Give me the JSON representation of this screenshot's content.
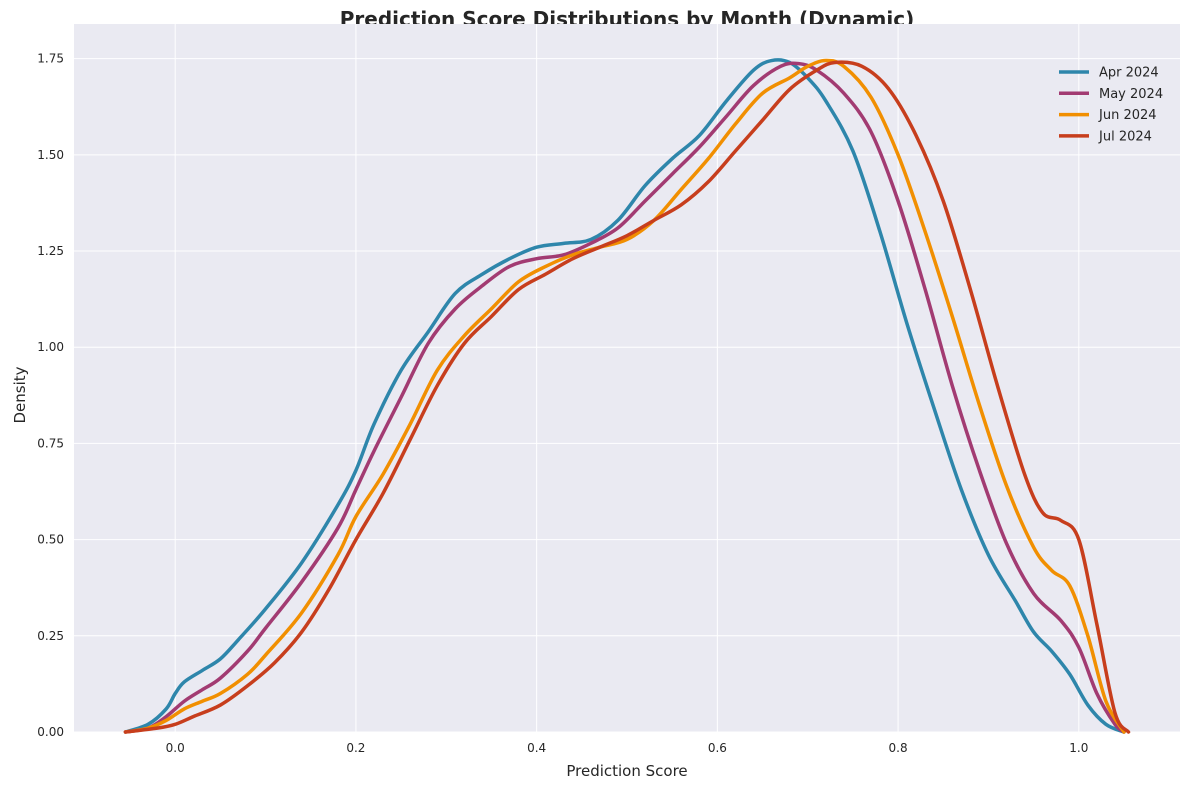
{
  "chart_data": {
    "type": "line",
    "title": "Prediction Score Distributions by Month (Dynamic)",
    "xlabel": "Prediction Score",
    "ylabel": "Density",
    "xlim": [
      -0.112,
      1.112
    ],
    "ylim": [
      0,
      1.84
    ],
    "xticks": [
      0.0,
      0.2,
      0.4,
      0.6,
      0.8,
      1.0
    ],
    "xtick_labels": [
      "0.0",
      "0.2",
      "0.4",
      "0.6",
      "0.8",
      "1.0"
    ],
    "yticks": [
      0,
      0.25,
      0.5,
      0.75,
      1.0,
      1.25,
      1.5,
      1.75
    ],
    "ytick_labels": [
      "0.00",
      "0.25",
      "0.50",
      "0.75",
      "1.00",
      "1.25",
      "1.50",
      "1.75"
    ],
    "grid": true,
    "legend_position": "top-right",
    "plot_background": "#eaeaf2",
    "series": [
      {
        "name": "Apr 2024",
        "color": "#2e86ab",
        "points": [
          [
            -0.055,
            0
          ],
          [
            -0.03,
            0.02
          ],
          [
            -0.01,
            0.06
          ],
          [
            0.0,
            0.1
          ],
          [
            0.01,
            0.13
          ],
          [
            0.03,
            0.16
          ],
          [
            0.05,
            0.19
          ],
          [
            0.07,
            0.24
          ],
          [
            0.1,
            0.32
          ],
          [
            0.14,
            0.44
          ],
          [
            0.18,
            0.59
          ],
          [
            0.2,
            0.68
          ],
          [
            0.22,
            0.8
          ],
          [
            0.25,
            0.94
          ],
          [
            0.28,
            1.04
          ],
          [
            0.31,
            1.14
          ],
          [
            0.34,
            1.19
          ],
          [
            0.37,
            1.23
          ],
          [
            0.4,
            1.26
          ],
          [
            0.43,
            1.27
          ],
          [
            0.46,
            1.28
          ],
          [
            0.49,
            1.33
          ],
          [
            0.52,
            1.42
          ],
          [
            0.55,
            1.49
          ],
          [
            0.58,
            1.55
          ],
          [
            0.61,
            1.64
          ],
          [
            0.64,
            1.72
          ],
          [
            0.66,
            1.745
          ],
          [
            0.68,
            1.74
          ],
          [
            0.7,
            1.7
          ],
          [
            0.72,
            1.64
          ],
          [
            0.75,
            1.51
          ],
          [
            0.78,
            1.3
          ],
          [
            0.81,
            1.06
          ],
          [
            0.84,
            0.84
          ],
          [
            0.87,
            0.63
          ],
          [
            0.9,
            0.46
          ],
          [
            0.93,
            0.34
          ],
          [
            0.95,
            0.26
          ],
          [
            0.97,
            0.21
          ],
          [
            0.99,
            0.15
          ],
          [
            1.01,
            0.07
          ],
          [
            1.03,
            0.02
          ],
          [
            1.05,
            0.0
          ]
        ]
      },
      {
        "name": "May 2024",
        "color": "#a23b72",
        "points": [
          [
            -0.055,
            0
          ],
          [
            -0.03,
            0.01
          ],
          [
            -0.01,
            0.04
          ],
          [
            0.01,
            0.08
          ],
          [
            0.03,
            0.11
          ],
          [
            0.05,
            0.14
          ],
          [
            0.08,
            0.21
          ],
          [
            0.1,
            0.27
          ],
          [
            0.14,
            0.39
          ],
          [
            0.18,
            0.53
          ],
          [
            0.2,
            0.63
          ],
          [
            0.22,
            0.73
          ],
          [
            0.25,
            0.87
          ],
          [
            0.28,
            1.01
          ],
          [
            0.31,
            1.1
          ],
          [
            0.34,
            1.16
          ],
          [
            0.37,
            1.21
          ],
          [
            0.4,
            1.23
          ],
          [
            0.43,
            1.24
          ],
          [
            0.46,
            1.27
          ],
          [
            0.49,
            1.31
          ],
          [
            0.52,
            1.38
          ],
          [
            0.55,
            1.45
          ],
          [
            0.58,
            1.52
          ],
          [
            0.61,
            1.6
          ],
          [
            0.64,
            1.68
          ],
          [
            0.67,
            1.73
          ],
          [
            0.69,
            1.737
          ],
          [
            0.71,
            1.72
          ],
          [
            0.74,
            1.66
          ],
          [
            0.77,
            1.56
          ],
          [
            0.8,
            1.38
          ],
          [
            0.83,
            1.15
          ],
          [
            0.86,
            0.9
          ],
          [
            0.89,
            0.68
          ],
          [
            0.92,
            0.49
          ],
          [
            0.95,
            0.36
          ],
          [
            0.98,
            0.29
          ],
          [
            1.0,
            0.22
          ],
          [
            1.02,
            0.1
          ],
          [
            1.04,
            0.02
          ],
          [
            1.05,
            0.0
          ]
        ]
      },
      {
        "name": "Jun 2024",
        "color": "#f18f01",
        "points": [
          [
            -0.055,
            0
          ],
          [
            -0.03,
            0.01
          ],
          [
            -0.01,
            0.03
          ],
          [
            0.01,
            0.06
          ],
          [
            0.03,
            0.08
          ],
          [
            0.05,
            0.1
          ],
          [
            0.08,
            0.15
          ],
          [
            0.1,
            0.2
          ],
          [
            0.14,
            0.31
          ],
          [
            0.18,
            0.46
          ],
          [
            0.2,
            0.56
          ],
          [
            0.23,
            0.67
          ],
          [
            0.26,
            0.8
          ],
          [
            0.29,
            0.94
          ],
          [
            0.32,
            1.03
          ],
          [
            0.35,
            1.1
          ],
          [
            0.38,
            1.17
          ],
          [
            0.41,
            1.21
          ],
          [
            0.44,
            1.24
          ],
          [
            0.47,
            1.26
          ],
          [
            0.5,
            1.28
          ],
          [
            0.53,
            1.33
          ],
          [
            0.56,
            1.41
          ],
          [
            0.59,
            1.49
          ],
          [
            0.62,
            1.58
          ],
          [
            0.65,
            1.66
          ],
          [
            0.68,
            1.7
          ],
          [
            0.7,
            1.73
          ],
          [
            0.72,
            1.745
          ],
          [
            0.74,
            1.73
          ],
          [
            0.77,
            1.65
          ],
          [
            0.8,
            1.5
          ],
          [
            0.83,
            1.3
          ],
          [
            0.86,
            1.08
          ],
          [
            0.89,
            0.85
          ],
          [
            0.92,
            0.64
          ],
          [
            0.95,
            0.48
          ],
          [
            0.97,
            0.42
          ],
          [
            0.99,
            0.38
          ],
          [
            1.01,
            0.25
          ],
          [
            1.03,
            0.08
          ],
          [
            1.05,
            0.0
          ]
        ]
      },
      {
        "name": "Jul 2024",
        "color": "#c73e1d",
        "points": [
          [
            -0.055,
            0
          ],
          [
            -0.02,
            0.01
          ],
          [
            0.0,
            0.02
          ],
          [
            0.02,
            0.04
          ],
          [
            0.05,
            0.07
          ],
          [
            0.08,
            0.12
          ],
          [
            0.11,
            0.18
          ],
          [
            0.14,
            0.26
          ],
          [
            0.17,
            0.37
          ],
          [
            0.2,
            0.5
          ],
          [
            0.23,
            0.62
          ],
          [
            0.26,
            0.76
          ],
          [
            0.29,
            0.9
          ],
          [
            0.32,
            1.01
          ],
          [
            0.35,
            1.08
          ],
          [
            0.38,
            1.15
          ],
          [
            0.41,
            1.19
          ],
          [
            0.44,
            1.23
          ],
          [
            0.47,
            1.26
          ],
          [
            0.5,
            1.29
          ],
          [
            0.53,
            1.33
          ],
          [
            0.56,
            1.37
          ],
          [
            0.59,
            1.43
          ],
          [
            0.62,
            1.51
          ],
          [
            0.65,
            1.59
          ],
          [
            0.68,
            1.67
          ],
          [
            0.71,
            1.72
          ],
          [
            0.73,
            1.74
          ],
          [
            0.76,
            1.73
          ],
          [
            0.79,
            1.67
          ],
          [
            0.82,
            1.55
          ],
          [
            0.85,
            1.38
          ],
          [
            0.88,
            1.15
          ],
          [
            0.91,
            0.9
          ],
          [
            0.94,
            0.67
          ],
          [
            0.96,
            0.57
          ],
          [
            0.98,
            0.55
          ],
          [
            1.0,
            0.5
          ],
          [
            1.02,
            0.28
          ],
          [
            1.04,
            0.05
          ],
          [
            1.055,
            0.0
          ]
        ]
      }
    ]
  }
}
